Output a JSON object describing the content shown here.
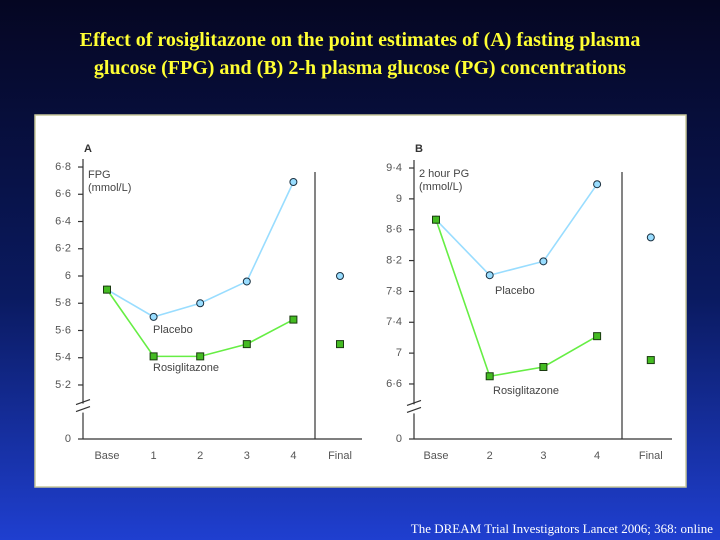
{
  "slide": {
    "title_lines": [
      "Effect of rosiglitazone on the point estimates of (A) fasting plasma",
      "glucose (FPG) and (B) 2-h plasma glucose (PG) concentrations"
    ],
    "source": "The DREAM Trial Investigators  Lancet 2006; 368: online"
  },
  "chart_data": [
    {
      "type": "line",
      "panel": "A",
      "ylabel_lines": [
        "FPG",
        "(mmol/L)"
      ],
      "categories": [
        "Base",
        "1",
        "2",
        "3",
        "4",
        "Final"
      ],
      "separate_last": true,
      "axis_break": true,
      "series": [
        {
          "name": "Placebo",
          "color": "#99ddff",
          "marker": "circle",
          "values": [
            5.9,
            5.7,
            5.8,
            5.96,
            6.69,
            6.0
          ]
        },
        {
          "name": "Rosiglitazone",
          "color": "#66ee44",
          "marker": "square",
          "values": [
            5.9,
            5.41,
            5.41,
            5.5,
            5.68,
            5.5
          ]
        }
      ],
      "ylim": [
        5.1,
        6.9
      ],
      "yticks": [
        0,
        {
          "value": 5.2,
          "label": "5·2"
        },
        {
          "value": 5.4,
          "label": "5·4"
        },
        {
          "value": 5.6,
          "label": "5·6"
        },
        {
          "value": 5.8,
          "label": "5·8"
        },
        6,
        {
          "value": 6.2,
          "label": "6·2"
        },
        {
          "value": 6.4,
          "label": "6·4"
        },
        {
          "value": 6.6,
          "label": "6·6"
        },
        {
          "value": 6.8,
          "label": "6·8"
        }
      ]
    },
    {
      "type": "line",
      "panel": "B",
      "ylabel_lines": [
        "2 hour PG",
        "(mmol/L)"
      ],
      "categories": [
        "Base",
        "2",
        "3",
        "4",
        "Final"
      ],
      "separate_last": true,
      "axis_break": true,
      "series": [
        {
          "name": "Placebo",
          "color": "#99ddff",
          "marker": "circle",
          "values": [
            8.73,
            8.01,
            8.19,
            9.19,
            8.5
          ]
        },
        {
          "name": "Rosiglitazone",
          "color": "#66ee44",
          "marker": "square",
          "values": [
            8.73,
            6.7,
            6.82,
            7.22,
            6.91
          ]
        }
      ],
      "ylim": [
        6.4,
        9.5
      ],
      "yticks": [
        0,
        {
          "value": 6.6,
          "label": "6·6"
        },
        7,
        {
          "value": 7.4,
          "label": "7·4"
        },
        {
          "value": 7.8,
          "label": "7·8"
        },
        {
          "value": 8.2,
          "label": "8·2"
        },
        {
          "value": 8.6,
          "label": "8·6"
        },
        9,
        {
          "value": 9.4,
          "label": "9·4"
        }
      ]
    }
  ]
}
